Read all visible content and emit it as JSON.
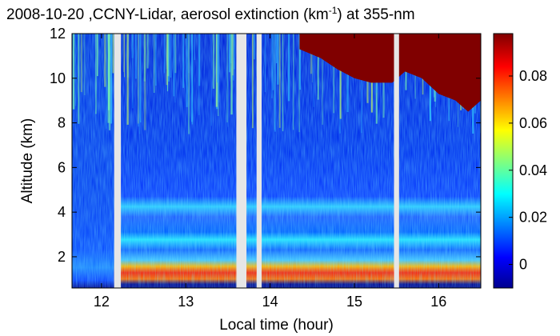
{
  "chart_data": {
    "type": "heatmap",
    "title": {
      "prefix": "2008-10-20 ,CCNY-Lidar, aerosol extinction (km",
      "superscript": "-1",
      "suffix": ") at 355-nm"
    },
    "xlabel": "Local time (hour)",
    "ylabel": "Altitude (km)",
    "xlim": [
      11.65,
      16.5
    ],
    "ylim": [
      0.6,
      12
    ],
    "x_ticks": [
      12,
      13,
      14,
      15,
      16
    ],
    "y_ticks": [
      2,
      4,
      6,
      8,
      10,
      12
    ],
    "colorbar": {
      "range": [
        -0.01,
        0.098
      ],
      "ticks": [
        0,
        0.02,
        0.04,
        0.06,
        0.08
      ],
      "tick_labels": [
        "0",
        "0.02",
        "0.04",
        "0.06",
        "0.08"
      ],
      "colormap": "jet"
    },
    "data_gaps_hours": [
      [
        12.15,
        12.23
      ],
      [
        13.6,
        13.72
      ],
      [
        13.84,
        13.9
      ],
      [
        15.47,
        15.53
      ]
    ],
    "cloud_top_region": {
      "description_values": "saturated extinction above cloud base",
      "base_km_samples": [
        {
          "x": 14.35,
          "y": 11.3
        },
        {
          "x": 14.6,
          "y": 10.9
        },
        {
          "x": 14.8,
          "y": 10.4
        },
        {
          "x": 15.0,
          "y": 10.0
        },
        {
          "x": 15.2,
          "y": 9.8
        },
        {
          "x": 15.45,
          "y": 9.8
        },
        {
          "x": 15.6,
          "y": 10.3
        },
        {
          "x": 15.8,
          "y": 10.0
        },
        {
          "x": 16.0,
          "y": 9.3
        },
        {
          "x": 16.2,
          "y": 9.0
        },
        {
          "x": 16.35,
          "y": 8.5
        },
        {
          "x": 16.5,
          "y": 9.0
        }
      ]
    },
    "layers_km": [
      {
        "altitude": 1.0,
        "level": 0.07
      },
      {
        "altitude": 3.0,
        "level": 0.04
      },
      {
        "altitude": 4.2,
        "level": 0.025
      }
    ]
  }
}
